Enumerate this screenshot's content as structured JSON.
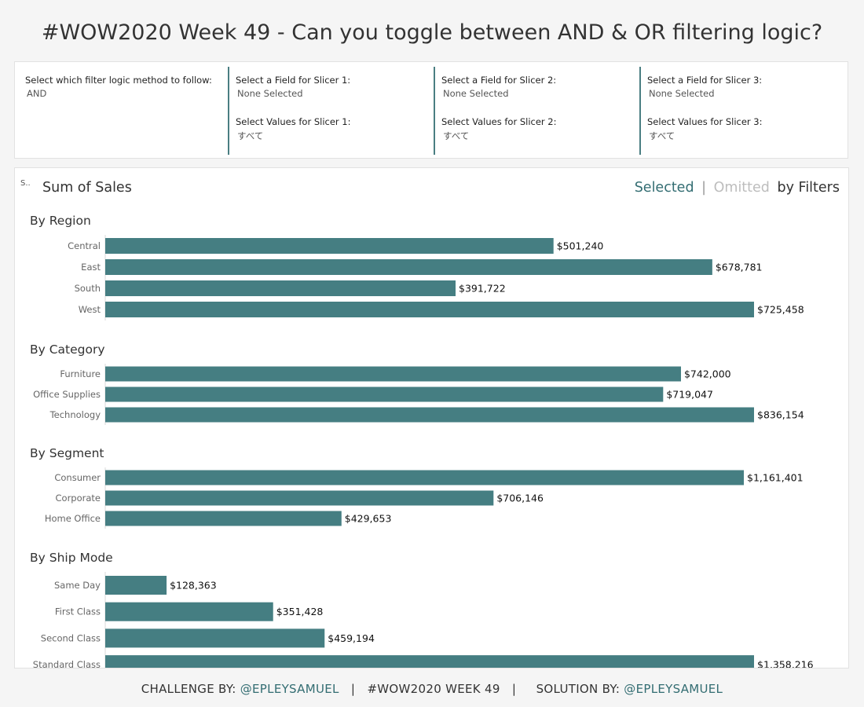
{
  "title": "#WOW2020 Week 49 - Can you toggle between AND & OR filtering logic?",
  "filters": {
    "logic_label": "Select which filter logic method to follow:",
    "logic_value": "AND",
    "slicers": [
      {
        "field_label": "Select a Field for Slicer 1:",
        "field_value": "None Selected",
        "values_label": "Select Values for Slicer 1:",
        "values_value": "すべて"
      },
      {
        "field_label": "Select a Field for Slicer 2:",
        "field_value": "None Selected",
        "values_label": "Select Values for Slicer 2:",
        "values_value": "すべて"
      },
      {
        "field_label": "Select a Field for Slicer 3:",
        "field_value": "None Selected",
        "values_label": "Select Values for Slicer 3:",
        "values_value": "すべて"
      }
    ]
  },
  "chart_header": {
    "small_label": "S..",
    "title": "Sum of Sales",
    "legend_selected": "Selected",
    "legend_sep": "|",
    "legend_omitted": "Omitted",
    "legend_suffix": "by Filters"
  },
  "colors": {
    "bar": "#457e82",
    "selected": "#336d72",
    "omitted": "#bdbdbd",
    "text": "#333333"
  },
  "chart_data": {
    "type": "bar",
    "orientation": "horizontal",
    "title": "Sum of Sales",
    "xlim": [
      0,
      1358216
    ],
    "groups": [
      {
        "title": "By Region",
        "categories": [
          "Central",
          "East",
          "South",
          "West"
        ],
        "values": [
          501240,
          678781,
          391722,
          725458
        ],
        "labels": [
          "$501,240",
          "$678,781",
          "$391,722",
          "$725,458"
        ],
        "group_max": 725458
      },
      {
        "title": "By Category",
        "categories": [
          "Furniture",
          "Office Supplies",
          "Technology"
        ],
        "values": [
          742000,
          719047,
          836154
        ],
        "labels": [
          "$742,000",
          "$719,047",
          "$836,154"
        ],
        "group_max": 836154
      },
      {
        "title": "By Segment",
        "categories": [
          "Consumer",
          "Corporate",
          "Home Office"
        ],
        "values": [
          1161401,
          706146,
          429653
        ],
        "labels": [
          "$1,161,401",
          "$706,146",
          "$429,653"
        ],
        "group_max": 1161401
      },
      {
        "title": "By Ship Mode",
        "categories": [
          "Same Day",
          "First Class",
          "Second Class",
          "Standard Class"
        ],
        "values": [
          128363,
          351428,
          459194,
          1358216
        ],
        "labels": [
          "$128,363",
          "$351,428",
          "$459,194",
          "$1,358,216"
        ],
        "group_max": 1358216
      }
    ]
  },
  "footer": {
    "challenge_prefix": "CHALLENGE BY: ",
    "challenge_handle": "@EPLEYSAMUEL",
    "sep1": "   |   ",
    "middle": "#WOW2020 WEEK 49",
    "sep2": "   |     ",
    "solution_prefix": "SOLUTION BY: ",
    "solution_handle": "@EPLEYSAMUEL"
  }
}
